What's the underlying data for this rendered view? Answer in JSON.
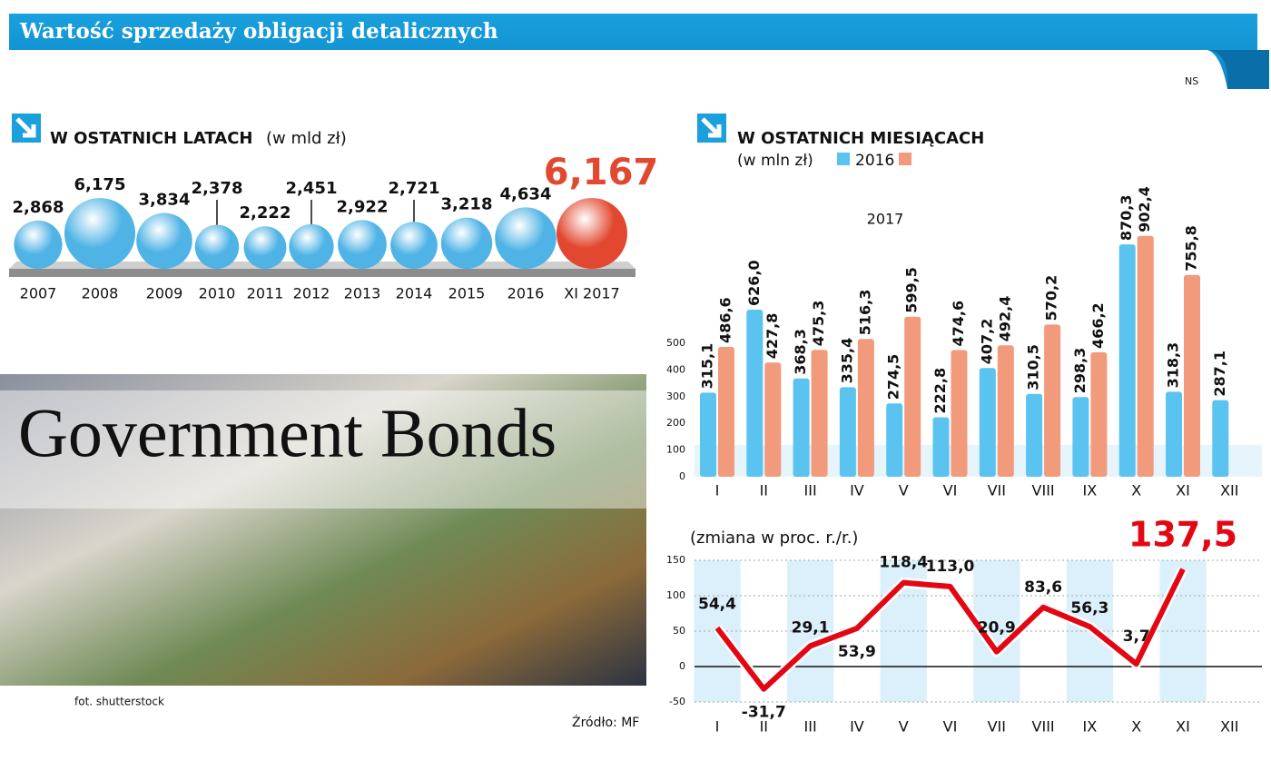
{
  "header": {
    "title": "Wartość sprzedaży obligacji detalicznych",
    "badge": "NS"
  },
  "photo": {
    "caption": "Government Bonds",
    "credit": "fot. shutterstock"
  },
  "source": "Źródło: MF",
  "chart_data": [
    {
      "type": "bubble",
      "title": "W OSTATNICH LATACH",
      "subtitle": "(w mld zł)",
      "categories": [
        "2007",
        "2008",
        "2009",
        "2010",
        "2011",
        "2012",
        "2013",
        "2014",
        "2015",
        "2016",
        "XI 2017"
      ],
      "values": [
        2.868,
        6.175,
        3.834,
        2.378,
        2.222,
        2.451,
        2.922,
        2.721,
        3.218,
        4.634,
        6.167
      ],
      "value_labels": [
        "2,868",
        "6,175",
        "3,834",
        "2,378",
        "2,222",
        "2,451",
        "2,922",
        "2,721",
        "3,218",
        "4,634",
        "6,167"
      ],
      "colors": [
        "#4fb3e6",
        "#4fb3e6",
        "#4fb3e6",
        "#4fb3e6",
        "#4fb3e6",
        "#4fb3e6",
        "#4fb3e6",
        "#4fb3e6",
        "#4fb3e6",
        "#4fb3e6",
        "#e2482f"
      ]
    },
    {
      "type": "bar",
      "title": "W OSTATNICH MIESIĄCACH",
      "subtitle": "(w mln zł)",
      "categories": [
        "I",
        "II",
        "III",
        "IV",
        "V",
        "VI",
        "VII",
        "VIII",
        "IX",
        "X",
        "XI",
        "XII"
      ],
      "series": [
        {
          "name": "2016",
          "color": "#5bc3ef",
          "values": [
            315.1,
            626.0,
            368.3,
            335.4,
            274.5,
            222.8,
            407.2,
            310.5,
            298.3,
            870.3,
            318.3,
            287.1
          ],
          "value_labels": [
            "315,1",
            "626,0",
            "368,3",
            "335,4",
            "274,5",
            "222,8",
            "407,2",
            "310,5",
            "298,3",
            "870,3",
            "318,3",
            "287,1"
          ]
        },
        {
          "name": "2017",
          "color": "#f29a7c",
          "values": [
            486.6,
            427.8,
            475.3,
            516.3,
            599.5,
            474.6,
            492.4,
            570.2,
            466.2,
            902.4,
            755.8,
            null
          ],
          "value_labels": [
            "486,6",
            "427,8",
            "475,3",
            "516,3",
            "599,5",
            "474,6",
            "492,4",
            "570,2",
            "466,2",
            "902,4",
            "755,8",
            null
          ]
        }
      ],
      "ylim": [
        0,
        500
      ],
      "yticks": [
        0,
        100,
        200,
        300,
        400,
        500
      ]
    },
    {
      "type": "line",
      "title": "(zmiana w proc. r./r.)",
      "categories": [
        "I",
        "II",
        "III",
        "IV",
        "V",
        "VI",
        "VII",
        "VIII",
        "IX",
        "X",
        "XI",
        "XII"
      ],
      "values": [
        54.4,
        -31.7,
        29.1,
        53.9,
        118.4,
        113.0,
        20.9,
        83.6,
        56.3,
        3.7,
        137.5,
        null
      ],
      "value_labels": [
        "54,4",
        "-31,7",
        "29,1",
        "53,9",
        "118,4",
        "113,0",
        "20,9",
        "83,6",
        "56,3",
        "3,7",
        "137,5",
        null
      ],
      "color": "#e30613",
      "ylim": [
        -50,
        150
      ],
      "yticks": [
        -50,
        0,
        50,
        100,
        150
      ],
      "grid": true
    }
  ]
}
